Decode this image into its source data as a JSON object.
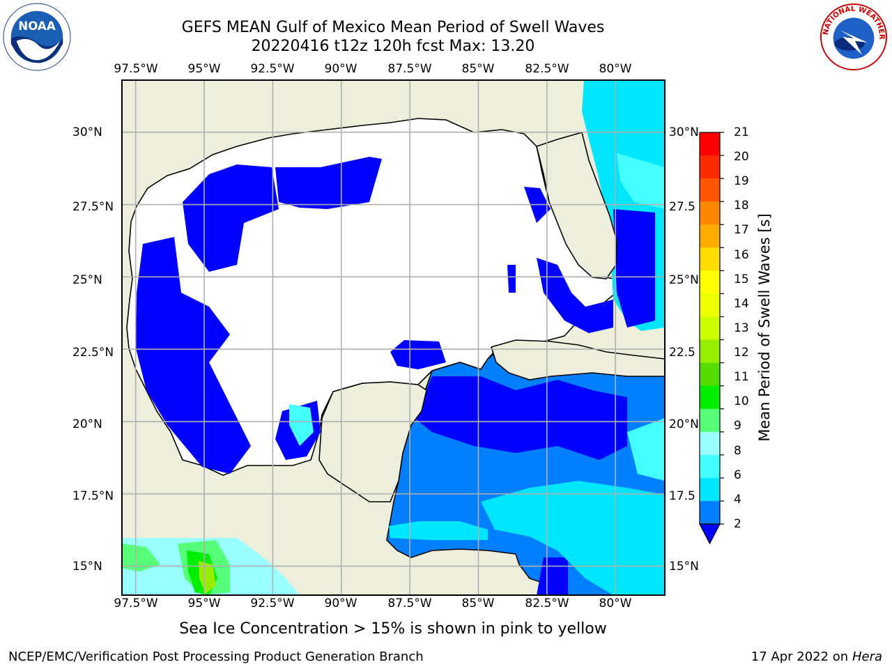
{
  "title": {
    "line1": "GEFS MEAN Gulf of Mexico Mean Period of Swell Waves",
    "line2": "20220416 t12z 120h fcst   Max: 13.20"
  },
  "map": {
    "lon_labels": [
      "97.5°W",
      "95°W",
      "92.5°W",
      "90°W",
      "87.5°W",
      "85°W",
      "82.5°W",
      "80°W"
    ],
    "lat_labels_left": [
      "30°N",
      "27.5°N",
      "25°N",
      "22.5°N",
      "20°N",
      "17.5°N",
      "15°N"
    ],
    "lat_labels_right": [
      "30°N",
      "27.5",
      "25°N",
      "22.5",
      "20°N",
      "17.5",
      "15°N"
    ],
    "extent": {
      "lon_min": -98,
      "lon_max": -78.2,
      "lat_min": 14,
      "lat_max": 31.8
    },
    "colors": {
      "land": "#eeeedd",
      "ocean_low": "#ffffff",
      "grid": "#b0b0b0"
    }
  },
  "colorbar": {
    "title": "Mean Period of Swell Waves [s]",
    "labels": [
      "21",
      "20",
      "19",
      "18",
      "17",
      "16",
      "15",
      "14",
      "13",
      "12",
      "11",
      "10",
      "9",
      "8",
      "6",
      "4",
      "2"
    ],
    "levels": [
      2,
      4,
      6,
      8,
      9,
      10,
      11,
      12,
      13,
      14,
      15,
      16,
      17,
      18,
      19,
      20,
      21
    ],
    "colors": [
      "#0000ff",
      "#0080ff",
      "#00e6ff",
      "#44ffff",
      "#99ffff",
      "#55ff77",
      "#00ee00",
      "#55dd00",
      "#99ee00",
      "#ccff00",
      "#eeff00",
      "#ffff00",
      "#ffdd00",
      "#ffaa00",
      "#ff8800",
      "#ff5500",
      "#ff2a00",
      "#ff0000"
    ]
  },
  "note": "Sea Ice Concentration > 15% is shown in pink to yellow",
  "footer": {
    "left": "NCEP/EMC/Verification Post Processing Product Generation Branch",
    "right_date": "17 Apr 2022 on ",
    "right_host": "Hera"
  },
  "logos": {
    "noaa_text": "NOAA",
    "nws_text": "NATIONAL WEATHER SERVICE"
  }
}
